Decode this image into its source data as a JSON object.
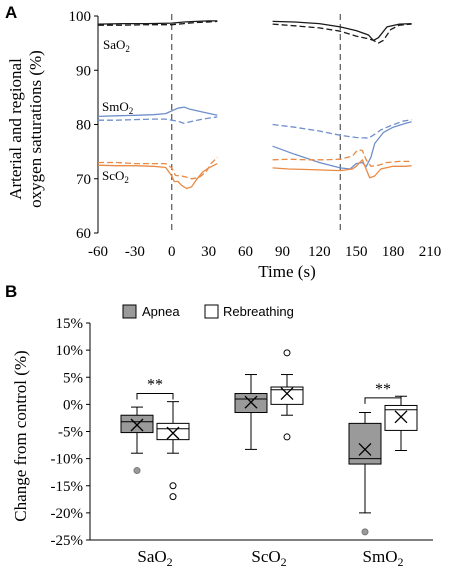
{
  "panels": {
    "a": "A",
    "b": "B"
  },
  "chart_data": [
    {
      "type": "line",
      "panel": "A",
      "xlabel": "Time (s)",
      "ylabel_line1": "Arterial and regional",
      "ylabel_line2": "oxygen saturations (%)",
      "xlim": [
        -60,
        210
      ],
      "ylim": [
        60,
        100
      ],
      "xtick_labels": [
        "-60",
        "-30",
        "0",
        "30",
        "60",
        "90",
        "120",
        "150",
        "180",
        "210"
      ],
      "ytick_labels": [
        "60",
        "70",
        "80",
        "90",
        "100"
      ],
      "vlines": [
        0,
        137
      ],
      "series_labels": {
        "sao2": {
          "main": "SaO",
          "sub": "2"
        },
        "smo2": {
          "main": "SmO",
          "sub": "2"
        },
        "sco2": {
          "main": "ScO",
          "sub": "2"
        }
      },
      "colors": {
        "sao2": "#1a1a1a",
        "smo2": "#6f8fcb",
        "sco2": "#e98a45"
      },
      "segments": [
        {
          "series": "sao2",
          "style": "solid",
          "x": [
            -60,
            -40,
            -20,
            0,
            10,
            20,
            30,
            37
          ],
          "y": [
            98.5,
            98.6,
            98.6,
            98.7,
            98.9,
            99.0,
            99.1,
            99.1
          ]
        },
        {
          "series": "sao2",
          "style": "dashed",
          "x": [
            -60,
            -40,
            -20,
            0,
            10,
            20,
            30,
            37
          ],
          "y": [
            98.3,
            98.3,
            98.4,
            98.4,
            98.6,
            98.8,
            98.9,
            99.0
          ]
        },
        {
          "series": "sao2",
          "style": "solid",
          "x": [
            82,
            100,
            120,
            137,
            150,
            160,
            164,
            168,
            175,
            185,
            195
          ],
          "y": [
            99.0,
            98.9,
            98.6,
            98.0,
            97.3,
            96.5,
            95.5,
            96.0,
            98.0,
            98.5,
            98.6
          ]
        },
        {
          "series": "sao2",
          "style": "dashed",
          "x": [
            82,
            100,
            120,
            137,
            150,
            160,
            164,
            168,
            172,
            178,
            185,
            195
          ],
          "y": [
            98.5,
            98.2,
            97.8,
            97.2,
            96.3,
            95.8,
            95.5,
            95.0,
            95.5,
            97.5,
            98.3,
            98.5
          ]
        },
        {
          "series": "smo2",
          "style": "solid",
          "x": [
            -60,
            -45,
            -30,
            -15,
            -5,
            0,
            5,
            10,
            15,
            25,
            37
          ],
          "y": [
            81.5,
            81.6,
            81.7,
            81.8,
            82.0,
            82.5,
            83.0,
            83.2,
            82.8,
            82.3,
            81.7
          ]
        },
        {
          "series": "smo2",
          "style": "dashed",
          "x": [
            -60,
            -45,
            -30,
            -15,
            -5,
            0,
            5,
            10,
            15,
            25,
            37
          ],
          "y": [
            80.8,
            80.8,
            80.9,
            81.0,
            81.0,
            80.8,
            80.6,
            80.2,
            80.5,
            81.0,
            81.4
          ]
        },
        {
          "series": "smo2",
          "style": "solid",
          "x": [
            82,
            100,
            120,
            137,
            145,
            150,
            155,
            158,
            162,
            165,
            172,
            180,
            190,
            195
          ],
          "y": [
            76.0,
            74.5,
            73.0,
            72.0,
            71.8,
            72.8,
            73.0,
            72.2,
            74.0,
            76.5,
            78.5,
            79.5,
            80.2,
            80.5
          ]
        },
        {
          "series": "smo2",
          "style": "dashed",
          "x": [
            82,
            100,
            120,
            137,
            150,
            160,
            165,
            170,
            178,
            188,
            195
          ],
          "y": [
            80.0,
            79.5,
            78.8,
            78.0,
            77.6,
            77.5,
            78.2,
            79.0,
            79.8,
            80.6,
            80.9
          ]
        },
        {
          "series": "sco2",
          "style": "solid",
          "x": [
            -60,
            -45,
            -30,
            -15,
            -5,
            0,
            2,
            5,
            8,
            12,
            16,
            20,
            25,
            30,
            37
          ],
          "y": [
            72.5,
            72.4,
            72.4,
            72.3,
            72.1,
            70.5,
            69.5,
            69.5,
            68.8,
            68.2,
            68.5,
            69.8,
            71.2,
            72.0,
            72.8
          ]
        },
        {
          "series": "sco2",
          "style": "dashed",
          "x": [
            -60,
            -45,
            -30,
            -15,
            -5,
            0,
            3,
            8,
            12,
            16,
            22,
            28,
            32,
            37
          ],
          "y": [
            73.0,
            73.0,
            72.8,
            72.8,
            72.8,
            72.0,
            70.6,
            70.5,
            70.3,
            70.0,
            70.2,
            71.3,
            72.8,
            74.0
          ]
        },
        {
          "series": "sco2",
          "style": "solid",
          "x": [
            82,
            95,
            110,
            125,
            137,
            147,
            150,
            152,
            155,
            158,
            161,
            165,
            170,
            180,
            190,
            195
          ],
          "y": [
            72.0,
            71.8,
            71.7,
            71.6,
            71.5,
            71.8,
            72.3,
            72.8,
            73.5,
            71.8,
            70.2,
            70.5,
            71.8,
            72.3,
            72.3,
            72.4
          ]
        },
        {
          "series": "sco2",
          "style": "dashed",
          "x": [
            82,
            95,
            110,
            125,
            137,
            147,
            150,
            152,
            155,
            158,
            162,
            168,
            175,
            185,
            195
          ],
          "y": [
            73.5,
            73.6,
            73.5,
            73.5,
            73.6,
            74.2,
            75.0,
            75.3,
            75.2,
            73.5,
            72.3,
            72.5,
            73.0,
            73.2,
            73.2
          ]
        }
      ]
    },
    {
      "type": "box",
      "panel": "B",
      "ylabel": "Change from control (%)",
      "ylim": [
        -25,
        15
      ],
      "ytick_labels": [
        "-25%",
        "-20%",
        "-15%",
        "-10%",
        "-5%",
        "0%",
        "5%",
        "10%",
        "15%"
      ],
      "categories": [
        {
          "main": "SaO",
          "sub": "2"
        },
        {
          "main": "ScO",
          "sub": "2"
        },
        {
          "main": "SmO",
          "sub": "2"
        }
      ],
      "legend": {
        "apnea": "Apnea",
        "rebreathing": "Rebreathing"
      },
      "colors": {
        "apnea": "#9a9a9a",
        "rebreathing": "#ffffff"
      },
      "boxes": [
        {
          "category": 0,
          "group": "apnea",
          "whisker_low": -9.0,
          "q1": -5.2,
          "median": -3.2,
          "q3": -2.0,
          "whisker_high": -0.5,
          "mean": -3.8,
          "outliers": [
            -12.2
          ]
        },
        {
          "category": 0,
          "group": "rebreathing",
          "whisker_low": -9.0,
          "q1": -6.5,
          "median": -4.5,
          "q3": -3.5,
          "whisker_high": 0.5,
          "mean": -5.3,
          "outliers": [
            -15.0,
            -17.0
          ]
        },
        {
          "category": 1,
          "group": "apnea",
          "whisker_low": -8.3,
          "q1": -1.5,
          "median": 1.0,
          "q3": 2.0,
          "whisker_high": 5.5,
          "mean": 0.4,
          "outliers": []
        },
        {
          "category": 1,
          "group": "rebreathing",
          "whisker_low": -2.0,
          "q1": 0.0,
          "median": 2.7,
          "q3": 3.2,
          "whisker_high": 5.5,
          "mean": 2.0,
          "outliers": [
            9.5,
            -6.0
          ]
        },
        {
          "category": 2,
          "group": "apnea",
          "whisker_low": -20.0,
          "q1": -11.0,
          "median": -10.0,
          "q3": -3.5,
          "whisker_high": -1.5,
          "mean": -8.3,
          "outliers": [
            -23.5
          ]
        },
        {
          "category": 2,
          "group": "rebreathing",
          "whisker_low": -8.5,
          "q1": -4.8,
          "median": -1.0,
          "q3": -0.2,
          "whisker_high": 1.5,
          "mean": -2.3,
          "outliers": []
        }
      ],
      "significance": [
        {
          "category": 0,
          "label": "**",
          "level": 2.0
        },
        {
          "category": 2,
          "label": "**",
          "level": 1.2
        }
      ]
    }
  ]
}
